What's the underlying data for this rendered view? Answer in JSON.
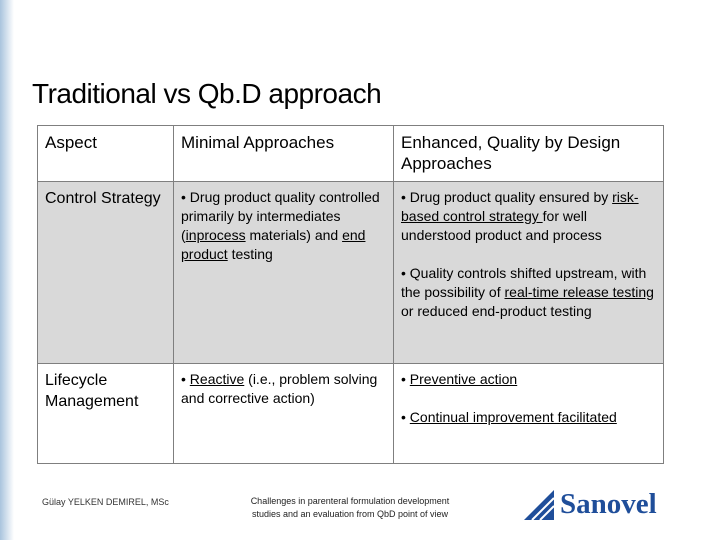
{
  "title": "Traditional vs Qb.D approach",
  "table": {
    "header": [
      "Aspect",
      "Minimal Approaches",
      "Enhanced, Quality by Design Approaches"
    ],
    "rows": [
      [
        [
          [
            "Control Strategy"
          ]
        ],
        [
          [
            "• Drug product quality controlled primarily by intermediates (",
            {
              "text": "inprocess",
              "underline": true
            },
            " materials) and ",
            {
              "text": "end product",
              "underline": true
            },
            " testing"
          ]
        ],
        [
          [
            "• Drug product quality ensured by ",
            {
              "text": "risk-based control strategy ",
              "underline": true
            },
            "for well understood product and process"
          ],
          [
            "• Quality controls shifted upstream, with the possibility of ",
            {
              "text": "real-time release testing ",
              "underline": true
            },
            "or reduced end-product testing"
          ]
        ]
      ],
      [
        [
          [
            "Lifecycle Management"
          ]
        ],
        [
          [
            "• ",
            {
              "text": "Reactive",
              "underline": true
            },
            " (i.e., problem solving and corrective action)"
          ]
        ],
        [
          [
            "• ",
            {
              "text": "Preventive action",
              "underline": true
            }
          ],
          [
            "• ",
            {
              "text": "Continual improvement facilitated",
              "underline": true
            }
          ]
        ]
      ]
    ]
  },
  "footer": {
    "author": "Gülay YELKEN DEMIREL, MSc",
    "subject": [
      "Challenges in parenteral formulation development",
      "studies and an evaluation from QbD point of view"
    ],
    "logo": "Sanovel"
  }
}
